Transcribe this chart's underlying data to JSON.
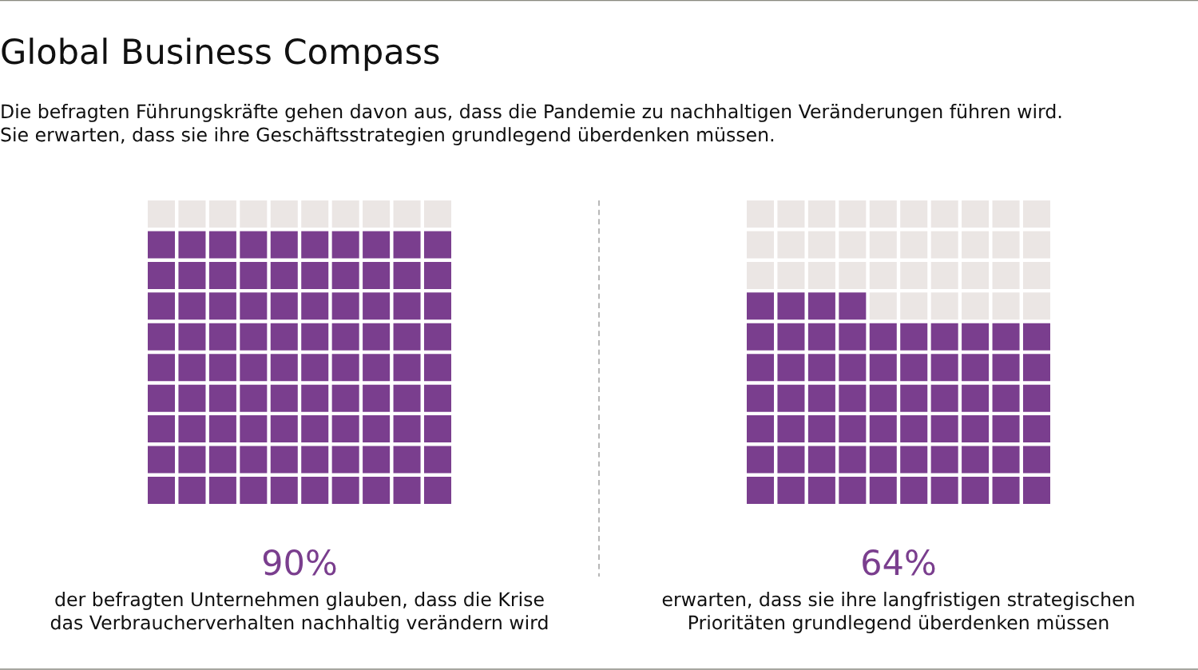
{
  "chart_data": [
    {
      "type": "other",
      "title": "Global Business Compass",
      "subtitle": "Die befragten Führungskräfte gehen davon aus, dass die Pandemie zu nachhaltigen Veränderungen führen wird.\nSie erwarten, dass sie ihre Geschäftsstrategien grundlegend überdenken müssen.",
      "values": [
        90
      ],
      "value_labels": [
        "90%"
      ],
      "color": "#7a3e8e",
      "annotations": [
        "der befragten Unternehmen glauben, dass die Krise\ndas Verbraucherverhalten nachhaltig verändern wird"
      ]
    },
    {
      "type": "other",
      "values": [
        64
      ],
      "value_labels": [
        "64%"
      ],
      "color": "#7a3e8e",
      "annotations": [
        "erwarten, dass sie ihre langfristigen strategischen\nPrioritäten grundlegend überdenken müssen"
      ]
    }
  ]
}
